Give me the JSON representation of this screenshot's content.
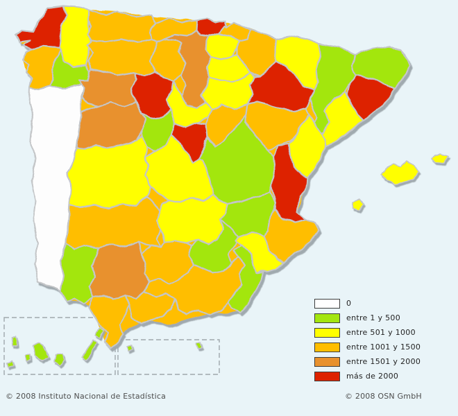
{
  "legend": {
    "items": [
      {
        "label": "0",
        "color": "#FFFFFF"
      },
      {
        "label": "entre 1 y 500",
        "color": "#A3E60F"
      },
      {
        "label": "entre 501 y 1000",
        "color": "#FFFF00"
      },
      {
        "label": "entre 1001 y 1500",
        "color": "#FFBE00"
      },
      {
        "label": "entre 1501 y 2000",
        "color": "#E8912E"
      },
      {
        "label": "más de 2000",
        "color": "#DD2200"
      }
    ]
  },
  "footer": {
    "left": "© 2008 Instituto Nacional de Estadística",
    "right": "© 2008 OSN GmbH"
  },
  "map": {
    "sea_color": "#E9F4F8",
    "border_color": "#C4C6C8",
    "outside_country_color": "#FDFDFD",
    "shadow_color": "#9CA6AB",
    "inset_box_color": "#9FA8AC",
    "backing_color": "#FFBE00",
    "provinces": [
      {
        "id": "coruna",
        "name": "A Coruña",
        "category": 5
      },
      {
        "id": "lugo",
        "name": "Lugo",
        "category": 2
      },
      {
        "id": "pontevedra",
        "name": "Pontevedra",
        "category": 3
      },
      {
        "id": "ourense",
        "name": "Ourense",
        "category": 1
      },
      {
        "id": "asturias",
        "name": "Asturias",
        "category": 3
      },
      {
        "id": "leon",
        "name": "León",
        "category": 3
      },
      {
        "id": "cantabria",
        "name": "Cantabria",
        "category": 3
      },
      {
        "id": "palencia",
        "name": "Palencia",
        "category": 3
      },
      {
        "id": "vizcaya",
        "name": "Bizkaia",
        "category": 5
      },
      {
        "id": "gipuzkoa",
        "name": "Gipuzkoa",
        "category": 3
      },
      {
        "id": "alava",
        "name": "Álava",
        "category": 2
      },
      {
        "id": "navarra",
        "name": "Navarra",
        "category": 3
      },
      {
        "id": "rioja",
        "name": "La Rioja",
        "category": 2
      },
      {
        "id": "burgos",
        "name": "Burgos",
        "category": 4
      },
      {
        "id": "soria",
        "name": "Soria",
        "category": 2
      },
      {
        "id": "zamora",
        "name": "Zamora",
        "category": 4
      },
      {
        "id": "valladolid",
        "name": "Valladolid",
        "category": 5
      },
      {
        "id": "segovia",
        "name": "Segovia",
        "category": 2
      },
      {
        "id": "salamanca",
        "name": "Salamanca",
        "category": 4
      },
      {
        "id": "avila",
        "name": "Ávila",
        "category": 1
      },
      {
        "id": "madrid",
        "name": "Madrid",
        "category": 5
      },
      {
        "id": "guadalajara",
        "name": "Guadalajara",
        "category": 3
      },
      {
        "id": "huesca",
        "name": "Huesca",
        "category": 2
      },
      {
        "id": "zaragoza",
        "name": "Zaragoza",
        "category": 5
      },
      {
        "id": "teruel",
        "name": "Teruel",
        "category": 3
      },
      {
        "id": "lleida",
        "name": "Lleida",
        "category": 1
      },
      {
        "id": "girona",
        "name": "Girona",
        "category": 1
      },
      {
        "id": "barcelona",
        "name": "Barcelona",
        "category": 5
      },
      {
        "id": "tarragona",
        "name": "Tarragona",
        "category": 2
      },
      {
        "id": "castellon",
        "name": "Castellón",
        "category": 2
      },
      {
        "id": "valencia",
        "name": "Valencia",
        "category": 5
      },
      {
        "id": "valencia-ademuz",
        "name": "Valencia (Rincón de Ademuz)",
        "category": 5
      },
      {
        "id": "cuenca",
        "name": "Cuenca",
        "category": 1
      },
      {
        "id": "toledo",
        "name": "Toledo",
        "category": 2
      },
      {
        "id": "caceres",
        "name": "Cáceres",
        "category": 2
      },
      {
        "id": "badajoz",
        "name": "Badajoz",
        "category": 3
      },
      {
        "id": "ciudadreal",
        "name": "Ciudad Real",
        "category": 2
      },
      {
        "id": "albacete",
        "name": "Albacete",
        "category": 1
      },
      {
        "id": "jaen",
        "name": "Jaén",
        "category": 1
      },
      {
        "id": "cordoba",
        "name": "Córdoba",
        "category": 3
      },
      {
        "id": "sevilla",
        "name": "Sevilla",
        "category": 4
      },
      {
        "id": "huelva",
        "name": "Huelva",
        "category": 1
      },
      {
        "id": "granada",
        "name": "Granada",
        "category": 3
      },
      {
        "id": "almeria",
        "name": "Almería",
        "category": 1
      },
      {
        "id": "murcia",
        "name": "Murcia",
        "category": 2
      },
      {
        "id": "alicante",
        "name": "Alicante",
        "category": 3
      },
      {
        "id": "cadiz",
        "name": "Cádiz",
        "category": 3
      },
      {
        "id": "malaga",
        "name": "Málaga",
        "category": 3
      }
    ],
    "islands": [
      {
        "id": "mallorca",
        "name": "Mallorca",
        "category": 2
      },
      {
        "id": "menorca",
        "name": "Menorca",
        "category": 2
      },
      {
        "id": "ibiza",
        "name": "Eivissa",
        "category": 2
      },
      {
        "id": "lapalma",
        "name": "La Palma",
        "category": 1
      },
      {
        "id": "hierro",
        "name": "El Hierro",
        "category": 1
      },
      {
        "id": "gomera",
        "name": "La Gomera",
        "category": 1
      },
      {
        "id": "tenerife",
        "name": "Tenerife",
        "category": 1
      },
      {
        "id": "grancanaria",
        "name": "Gran Canaria",
        "category": 1
      },
      {
        "id": "fuerteventura",
        "name": "Fuerteventura",
        "category": 1
      },
      {
        "id": "lanzarote",
        "name": "Lanzarote",
        "category": 1
      },
      {
        "id": "ceuta",
        "name": "Ceuta",
        "category": 1
      },
      {
        "id": "melilla",
        "name": "Melilla",
        "category": 1
      }
    ]
  }
}
